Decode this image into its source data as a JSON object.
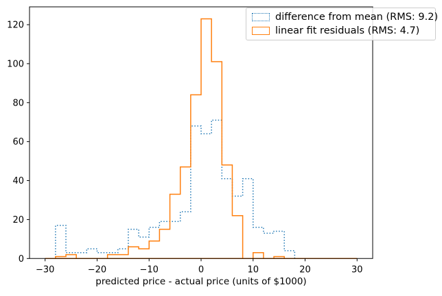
{
  "figure": {
    "background_color": "#ffffff",
    "axes_edge_color": "#000000"
  },
  "chart_data": {
    "type": "bar",
    "subtype": "step-histogram",
    "title": "",
    "xlabel": "predicted price - actual price (units of $1000)",
    "ylabel": "",
    "bin_width": 2,
    "bin_edges": [
      -30,
      -28,
      -26,
      -24,
      -22,
      -20,
      -18,
      -16,
      -14,
      -12,
      -10,
      -8,
      -6,
      -4,
      -2,
      0,
      2,
      4,
      6,
      8,
      10,
      12,
      14,
      16,
      18,
      20,
      22,
      24,
      26,
      28,
      30
    ],
    "series": [
      {
        "name": "difference from mean (RMS: 9.2)",
        "slug": "difference-from-mean",
        "color": "#1f77b4",
        "linestyle": "dotted",
        "counts": [
          0,
          17,
          3,
          3,
          5,
          3,
          3,
          5,
          15,
          11,
          16,
          19,
          19,
          24,
          68,
          64,
          71,
          41,
          32,
          41,
          16,
          13,
          14,
          4,
          0,
          0,
          0,
          0,
          0,
          0
        ]
      },
      {
        "name": "linear fit residuals (RMS: 4.7)",
        "slug": "linear-fit-residuals",
        "color": "#ff7f0e",
        "linestyle": "solid",
        "counts": [
          0,
          1,
          2,
          0,
          0,
          0,
          2,
          2,
          6,
          5,
          9,
          15,
          33,
          47,
          84,
          123,
          101,
          48,
          22,
          0,
          3,
          0,
          1,
          0,
          0,
          0,
          0,
          0,
          0,
          0
        ]
      }
    ],
    "x_ticks": [
      -30,
      -20,
      -10,
      0,
      10,
      20,
      30
    ],
    "y_ticks": [
      0,
      20,
      40,
      60,
      80,
      100,
      120
    ],
    "xlim": [
      -33,
      33
    ],
    "ylim": [
      0,
      129.15
    ],
    "grid": false,
    "legend_position": "upper right"
  }
}
